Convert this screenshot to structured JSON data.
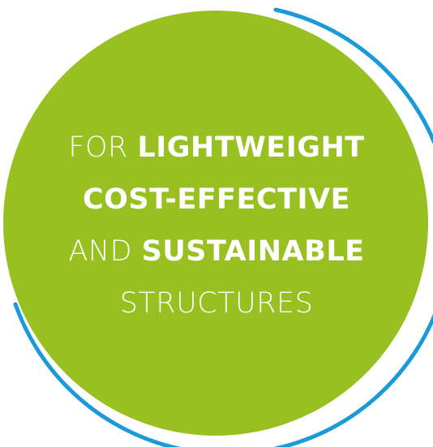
{
  "colors": {
    "circle_fill": "#97c020",
    "arc_stroke": "#1a9ad8",
    "text": "#ffffff"
  },
  "lines": [
    {
      "light": "FOR ",
      "bold": "LIGHTWEIGHT"
    },
    {
      "light": "",
      "bold": "COST-EFFECTIVE"
    },
    {
      "light": "AND ",
      "bold": "SUSTAINABLE"
    },
    {
      "light": "STRUCTURES",
      "bold": ""
    }
  ]
}
